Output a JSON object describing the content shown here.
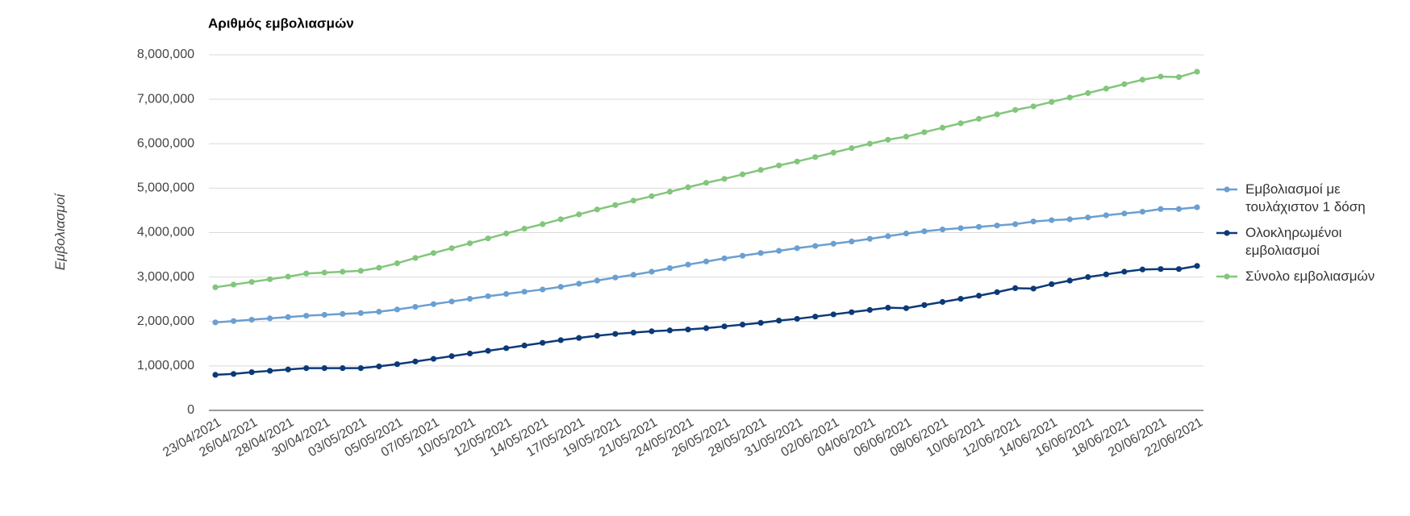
{
  "chart_data": {
    "type": "line",
    "title": "Αριθμός εμβολιασμών",
    "y_label": "Εμβολιασμοί",
    "categories": [
      "23/04/2021",
      null,
      "26/04/2021",
      null,
      "28/04/2021",
      null,
      "30/04/2021",
      null,
      "03/05/2021",
      null,
      "05/05/2021",
      null,
      "07/05/2021",
      null,
      "10/05/2021",
      null,
      "12/05/2021",
      null,
      "14/05/2021",
      null,
      "17/05/2021",
      null,
      "19/05/2021",
      null,
      "21/05/2021",
      null,
      "24/05/2021",
      null,
      "26/05/2021",
      null,
      "28/05/2021",
      null,
      "31/05/2021",
      null,
      "02/06/2021",
      null,
      "04/06/2021",
      null,
      "06/06/2021",
      null,
      "08/06/2021",
      null,
      "10/06/2021",
      null,
      "12/06/2021",
      null,
      "14/06/2021",
      null,
      "16/06/2021",
      null,
      "18/06/2021",
      null,
      "20/06/2021",
      null,
      "22/06/2021"
    ],
    "series": [
      {
        "name": "Εμβολιασμοί με τουλάχιστον 1 δόση",
        "color": "#6b9fd1",
        "values": [
          1980000,
          2010000,
          2040000,
          2070000,
          2100000,
          2130000,
          2150000,
          2170000,
          2190000,
          2220000,
          2270000,
          2330000,
          2390000,
          2450000,
          2510000,
          2570000,
          2620000,
          2670000,
          2720000,
          2780000,
          2850000,
          2920000,
          2990000,
          3050000,
          3120000,
          3200000,
          3280000,
          3350000,
          3420000,
          3480000,
          3540000,
          3590000,
          3650000,
          3700000,
          3750000,
          3800000,
          3860000,
          3920000,
          3980000,
          4030000,
          4070000,
          4100000,
          4130000,
          4160000,
          4190000,
          4250000,
          4280000,
          4300000,
          4340000,
          4390000,
          4430000,
          4470000,
          4530000,
          4530000,
          4570000
        ]
      },
      {
        "name": "Ολοκληρωμένοι εμβολιασμοί",
        "color": "#0c3a78",
        "values": [
          800000,
          820000,
          860000,
          890000,
          920000,
          950000,
          950000,
          950000,
          950000,
          990000,
          1040000,
          1100000,
          1160000,
          1220000,
          1280000,
          1340000,
          1400000,
          1460000,
          1520000,
          1580000,
          1630000,
          1680000,
          1720000,
          1750000,
          1780000,
          1800000,
          1820000,
          1850000,
          1890000,
          1930000,
          1970000,
          2020000,
          2060000,
          2110000,
          2160000,
          2210000,
          2260000,
          2310000,
          2300000,
          2370000,
          2440000,
          2510000,
          2580000,
          2660000,
          2750000,
          2740000,
          2840000,
          2920000,
          3000000,
          3060000,
          3120000,
          3170000,
          3180000,
          3180000,
          3250000
        ]
      },
      {
        "name": "Σύνολο εμβολιασμών",
        "color": "#82c67c",
        "values": [
          2770000,
          2830000,
          2890000,
          2950000,
          3010000,
          3080000,
          3100000,
          3120000,
          3140000,
          3210000,
          3310000,
          3430000,
          3540000,
          3650000,
          3760000,
          3870000,
          3980000,
          4090000,
          4190000,
          4300000,
          4410000,
          4520000,
          4620000,
          4720000,
          4820000,
          4920000,
          5020000,
          5120000,
          5210000,
          5310000,
          5410000,
          5510000,
          5600000,
          5700000,
          5800000,
          5900000,
          6000000,
          6090000,
          6160000,
          6260000,
          6360000,
          6460000,
          6560000,
          6660000,
          6760000,
          6840000,
          6940000,
          7040000,
          7140000,
          7240000,
          7340000,
          7440000,
          7510000,
          7500000,
          7620000
        ]
      }
    ],
    "ylim": [
      0,
      8000000
    ],
    "yticks": [
      0,
      {
        "value": 1000000,
        "label": "1,000,000"
      },
      {
        "value": 2000000,
        "label": "2,000,000"
      },
      {
        "value": 3000000,
        "label": "3,000,000"
      },
      {
        "value": 4000000,
        "label": "4,000,000"
      },
      {
        "value": 5000000,
        "label": "5,000,000"
      },
      {
        "value": 6000000,
        "label": "6,000,000"
      },
      {
        "value": 7000000,
        "label": "7,000,000"
      },
      {
        "value": 8000000,
        "label": "8,000,000"
      }
    ],
    "grid": true,
    "legend": "right"
  }
}
